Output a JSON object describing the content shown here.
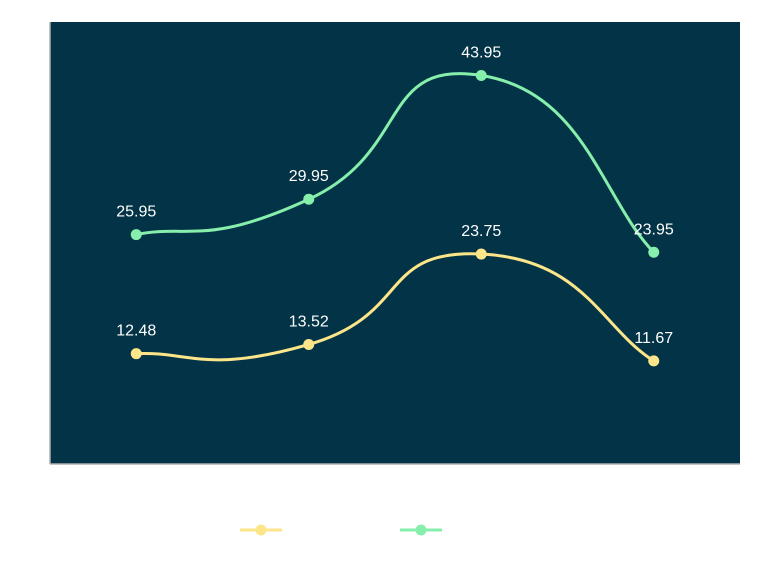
{
  "chart_data": {
    "type": "line",
    "smooth": true,
    "categories": [
      "",
      "",
      "",
      ""
    ],
    "series": [
      {
        "values": [
          12.48,
          13.52,
          23.75,
          11.67
        ],
        "color": "#fde68a"
      },
      {
        "values": [
          25.95,
          29.95,
          43.95,
          23.95
        ],
        "color": "#86efac"
      }
    ],
    "data_labels": true,
    "ylim": [
      0,
      50
    ],
    "grid": false,
    "legend": "bottom-center",
    "plot_background": "#023346",
    "axis_color": "#b0b0b0",
    "label_color": "#ffffff"
  }
}
